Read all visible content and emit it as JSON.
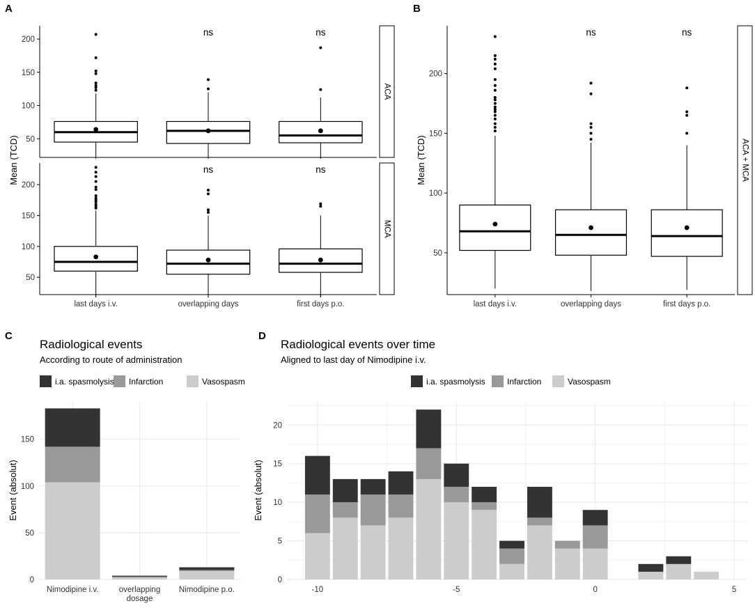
{
  "panel_labels": {
    "a": "A",
    "b": "B",
    "c": "C",
    "d": "D"
  },
  "chart_data": [
    {
      "id": "A",
      "type": "boxplot",
      "ylabel": "Mean (TCD)",
      "categories": [
        "last days i.v.",
        "overlapping days",
        "first days p.o."
      ],
      "facets": [
        {
          "name": "ACA",
          "ylim": [
            22,
            220
          ],
          "yticks": [
            50,
            100,
            150,
            200
          ],
          "annotations": [
            "",
            "ns",
            "ns"
          ],
          "boxes": [
            {
              "min": 20,
              "q1": 45,
              "median": 60,
              "q3": 76,
              "max": 118,
              "mean": 64,
              "outliers": [
                123,
                127,
                130,
                134,
                148,
                152,
                172,
                207
              ]
            },
            {
              "min": 20,
              "q1": 43,
              "median": 62,
              "q3": 76,
              "max": 120,
              "mean": 62,
              "outliers": [
                125,
                139
              ]
            },
            {
              "min": 20,
              "q1": 44,
              "median": 55,
              "q3": 76,
              "max": 112,
              "mean": 62,
              "outliers": [
                124,
                187
              ]
            }
          ]
        },
        {
          "name": "MCA",
          "ylim": [
            22,
            235
          ],
          "yticks": [
            50,
            100,
            150,
            200
          ],
          "annotations": [
            "",
            "ns",
            "ns"
          ],
          "boxes": [
            {
              "min": 18,
              "q1": 60,
              "median": 75,
              "q3": 100,
              "max": 158,
              "mean": 83,
              "outliers": [
                162,
                165,
                168,
                172,
                175,
                178,
                182,
                192,
                196,
                205,
                213,
                220,
                228
              ]
            },
            {
              "min": 17,
              "q1": 55,
              "median": 72,
              "q3": 94,
              "max": 150,
              "mean": 78,
              "outliers": [
                155,
                159,
                185,
                191
              ]
            },
            {
              "min": 18,
              "q1": 58,
              "median": 72,
              "q3": 96,
              "max": 150,
              "mean": 78,
              "outliers": [
                165,
                169
              ]
            }
          ]
        }
      ]
    },
    {
      "id": "B",
      "type": "boxplot",
      "ylabel": "Mean (TCD)",
      "facet": "ACA + MCA",
      "categories": [
        "last days i.v.",
        "overlapping days",
        "first days p.o."
      ],
      "ylim": [
        15,
        240
      ],
      "yticks": [
        50,
        100,
        150,
        200
      ],
      "annotations": [
        "",
        "ns",
        "ns"
      ],
      "boxes": [
        {
          "min": 20,
          "q1": 52,
          "median": 68,
          "q3": 90,
          "max": 148,
          "mean": 74,
          "outliers": [
            152,
            155,
            158,
            162,
            165,
            168,
            170,
            172,
            175,
            178,
            180,
            186,
            190,
            195,
            204,
            208,
            212,
            215,
            231
          ]
        },
        {
          "min": 18,
          "q1": 48,
          "median": 65,
          "q3": 86,
          "max": 142,
          "mean": 71,
          "outliers": [
            145,
            150,
            155,
            158,
            183,
            192
          ]
        },
        {
          "min": 19,
          "q1": 47,
          "median": 64,
          "q3": 86,
          "max": 140,
          "mean": 71,
          "outliers": [
            150,
            165,
            168,
            188
          ]
        }
      ]
    },
    {
      "id": "C",
      "type": "bar",
      "stacked": true,
      "title": "Radiological events",
      "subtitle": "According to route of administration",
      "ylabel": "Event (absolut)",
      "ylim": [
        0,
        190
      ],
      "yticks": [
        0,
        50,
        100,
        150
      ],
      "legend": [
        "i.a. spasmolysis",
        "Infarction",
        "Vasospasm"
      ],
      "colors": [
        "#333333",
        "#999999",
        "#cccccc"
      ],
      "categories": [
        "Nimodipine i.v.",
        "overlapping dosage",
        "Nimodipine p.o."
      ],
      "category_lines": [
        [
          "Nimodipine i.v."
        ],
        [
          "overlapping",
          "dosage"
        ],
        [
          "Nimodipine p.o."
        ]
      ],
      "series": [
        {
          "name": "Vasospasm",
          "values": [
            104,
            2,
            9
          ]
        },
        {
          "name": "Infarction",
          "values": [
            38,
            1,
            1
          ]
        },
        {
          "name": "i.a. spasmolysis",
          "values": [
            41,
            1,
            3
          ]
        }
      ]
    },
    {
      "id": "D",
      "type": "bar",
      "stacked": true,
      "title": "Radiological events over time",
      "subtitle": "Aligned to last day of Nimodipine i.v.",
      "ylabel": "Event (absolut)",
      "xlim": [
        -11.1,
        5.5
      ],
      "ylim": [
        0,
        23
      ],
      "xticks": [
        -10,
        -5,
        0,
        5
      ],
      "yticks": [
        0,
        5,
        10,
        15,
        20
      ],
      "legend": [
        "i.a. spasmolysis",
        "Infarction",
        "Vasospasm"
      ],
      "colors": [
        "#333333",
        "#999999",
        "#cccccc"
      ],
      "x": [
        -10,
        -9,
        -8,
        -7,
        -6,
        -5,
        -4,
        -3,
        -2,
        -1,
        0,
        2,
        3,
        4
      ],
      "series": [
        {
          "name": "Vasospasm",
          "values": [
            6,
            8,
            7,
            8,
            13,
            10,
            9,
            2,
            7,
            4,
            4,
            1,
            2,
            1
          ]
        },
        {
          "name": "Infarction",
          "values": [
            5,
            2,
            4,
            3,
            4,
            2,
            1,
            2,
            1,
            1,
            3,
            0,
            0,
            0
          ]
        },
        {
          "name": "i.a. spasmolysis",
          "values": [
            5,
            3,
            2,
            3,
            5,
            3,
            2,
            1,
            4,
            0,
            2,
            1,
            1,
            0
          ]
        }
      ]
    }
  ]
}
